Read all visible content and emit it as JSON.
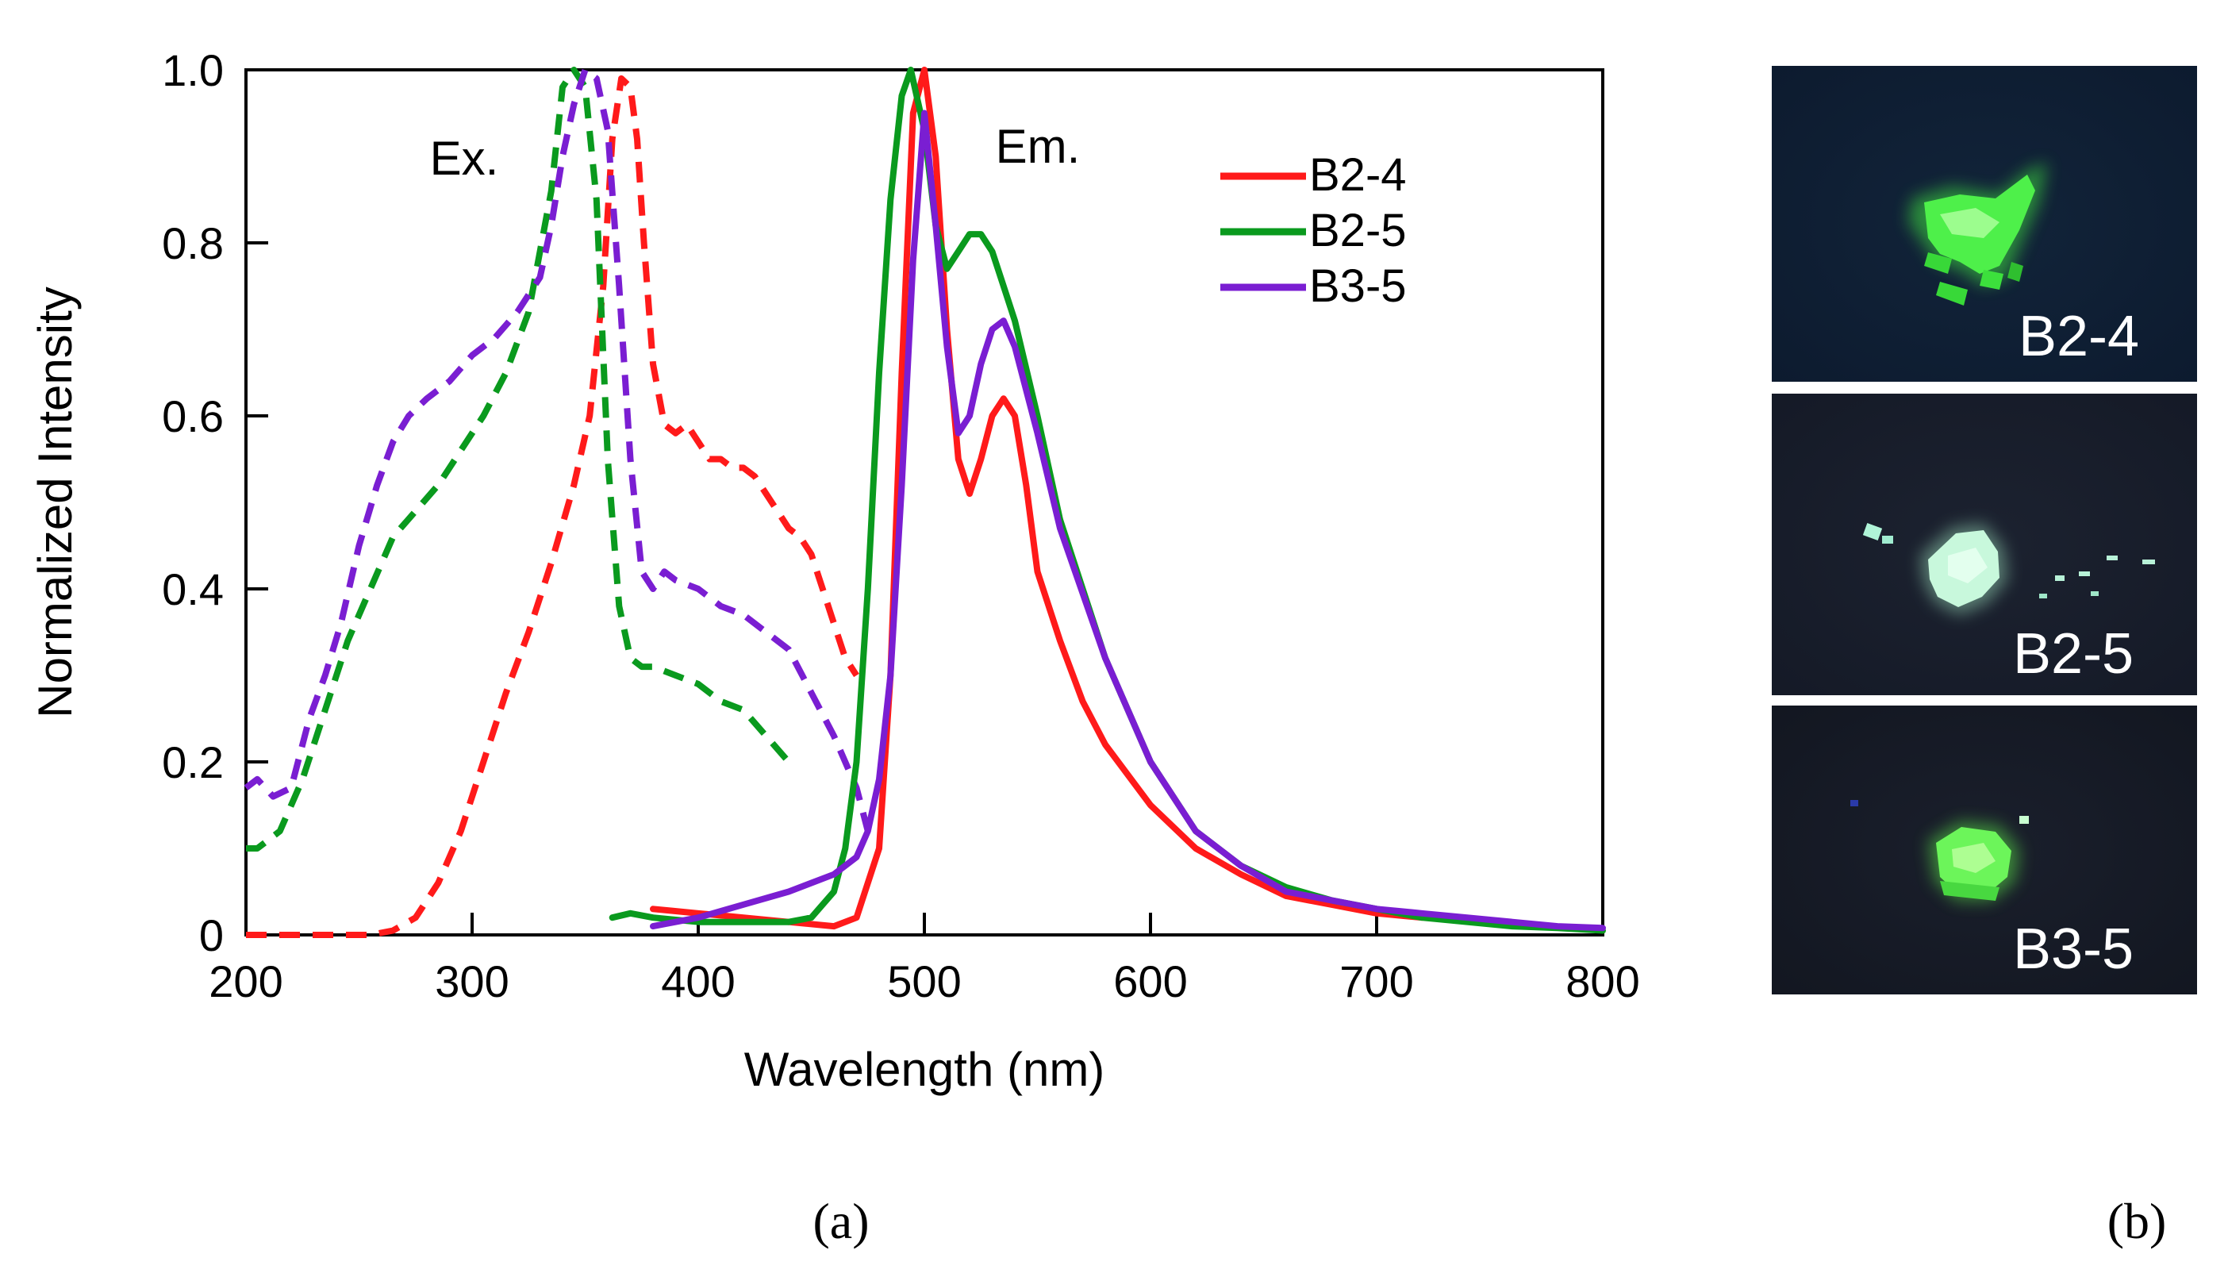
{
  "chart_data": {
    "type": "line",
    "title": "",
    "xlabel": "Wavelength (nm)",
    "ylabel": "Normalized Intensity",
    "xlim": [
      200,
      800
    ],
    "ylim": [
      0,
      1.0
    ],
    "x_ticks": [
      200,
      300,
      400,
      500,
      600,
      700,
      800
    ],
    "x_tick_labels": [
      "200",
      "300",
      "400",
      "500",
      "600",
      "700",
      "800"
    ],
    "y_ticks": [
      0,
      0.2,
      0.4,
      0.6,
      0.8,
      1.0
    ],
    "y_tick_labels": [
      "0",
      "0.2",
      "0.4",
      "0.6",
      "0.8",
      "1.0"
    ],
    "grid": false,
    "legend_position": "top-right",
    "annotations": {
      "excitation": "Ex.",
      "emission": "Em."
    },
    "series": [
      {
        "name": "B2-4",
        "color": "#ff1a1a",
        "excitation": {
          "x": [
            200,
            230,
            255,
            265,
            275,
            285,
            295,
            305,
            315,
            325,
            335,
            345,
            352,
            358,
            362,
            366,
            370,
            373,
            376,
            380,
            385,
            390,
            395,
            400,
            405,
            410,
            415,
            420,
            425,
            430,
            435,
            440,
            445,
            450,
            455,
            460,
            465,
            470
          ],
          "y": [
            0.0,
            0.0,
            0.0,
            0.005,
            0.02,
            0.06,
            0.12,
            0.2,
            0.28,
            0.35,
            0.43,
            0.52,
            0.6,
            0.75,
            0.92,
            0.99,
            0.98,
            0.92,
            0.8,
            0.66,
            0.59,
            0.58,
            0.59,
            0.57,
            0.55,
            0.55,
            0.54,
            0.54,
            0.53,
            0.51,
            0.49,
            0.47,
            0.46,
            0.44,
            0.4,
            0.36,
            0.32,
            0.3
          ]
        },
        "emission": {
          "x": [
            380,
            400,
            420,
            440,
            460,
            470,
            480,
            485,
            490,
            495,
            500,
            505,
            510,
            515,
            520,
            525,
            530,
            535,
            540,
            545,
            550,
            560,
            570,
            580,
            600,
            620,
            640,
            660,
            680,
            700,
            720
          ],
          "y": [
            0.03,
            0.025,
            0.02,
            0.015,
            0.01,
            0.02,
            0.1,
            0.3,
            0.65,
            0.95,
            1.0,
            0.9,
            0.7,
            0.55,
            0.51,
            0.55,
            0.6,
            0.62,
            0.6,
            0.52,
            0.42,
            0.34,
            0.27,
            0.22,
            0.15,
            0.1,
            0.07,
            0.045,
            0.035,
            0.025,
            0.02
          ]
        }
      },
      {
        "name": "B2-5",
        "color": "#0a9a1e",
        "excitation": {
          "x": [
            200,
            205,
            215,
            225,
            235,
            245,
            255,
            265,
            275,
            285,
            295,
            305,
            315,
            325,
            335,
            340,
            345,
            350,
            355,
            360,
            365,
            370,
            375,
            380,
            390,
            400,
            410,
            420,
            430,
            440
          ],
          "y": [
            0.1,
            0.1,
            0.12,
            0.18,
            0.26,
            0.34,
            0.4,
            0.46,
            0.49,
            0.52,
            0.56,
            0.6,
            0.65,
            0.72,
            0.86,
            0.98,
            1.0,
            0.98,
            0.85,
            0.55,
            0.38,
            0.32,
            0.31,
            0.31,
            0.3,
            0.29,
            0.27,
            0.26,
            0.23,
            0.2
          ]
        },
        "emission": {
          "x": [
            362,
            370,
            380,
            400,
            420,
            440,
            450,
            460,
            465,
            470,
            475,
            480,
            485,
            490,
            494,
            500,
            505,
            510,
            515,
            520,
            525,
            530,
            535,
            540,
            550,
            560,
            580,
            600,
            620,
            640,
            660,
            680,
            700,
            720,
            740,
            760,
            780,
            800
          ],
          "y": [
            0.02,
            0.025,
            0.02,
            0.015,
            0.015,
            0.015,
            0.02,
            0.05,
            0.1,
            0.2,
            0.4,
            0.65,
            0.85,
            0.97,
            1.0,
            0.93,
            0.82,
            0.77,
            0.79,
            0.81,
            0.81,
            0.79,
            0.75,
            0.71,
            0.6,
            0.48,
            0.32,
            0.2,
            0.12,
            0.08,
            0.055,
            0.04,
            0.03,
            0.02,
            0.015,
            0.01,
            0.008,
            0.005
          ]
        }
      },
      {
        "name": "B3-5",
        "color": "#7a1ed2",
        "excitation": {
          "x": [
            200,
            205,
            212,
            220,
            228,
            235,
            242,
            250,
            258,
            265,
            272,
            280,
            290,
            300,
            310,
            320,
            330,
            335,
            340,
            345,
            350,
            355,
            360,
            365,
            370,
            375,
            380,
            385,
            390,
            400,
            410,
            420,
            430,
            440,
            450,
            460,
            470,
            475
          ],
          "y": [
            0.17,
            0.18,
            0.16,
            0.17,
            0.25,
            0.3,
            0.36,
            0.45,
            0.52,
            0.57,
            0.6,
            0.62,
            0.64,
            0.67,
            0.69,
            0.72,
            0.76,
            0.82,
            0.9,
            0.96,
            1.0,
            0.99,
            0.93,
            0.75,
            0.55,
            0.42,
            0.4,
            0.42,
            0.41,
            0.4,
            0.38,
            0.37,
            0.35,
            0.33,
            0.28,
            0.23,
            0.17,
            0.12
          ]
        },
        "emission": {
          "x": [
            380,
            400,
            420,
            440,
            460,
            470,
            475,
            480,
            485,
            490,
            495,
            500,
            505,
            510,
            515,
            520,
            525,
            530,
            535,
            540,
            550,
            560,
            580,
            600,
            620,
            640,
            660,
            680,
            700,
            720,
            740,
            760,
            780,
            800
          ],
          "y": [
            0.01,
            0.02,
            0.035,
            0.05,
            0.07,
            0.09,
            0.12,
            0.18,
            0.3,
            0.52,
            0.78,
            0.95,
            0.82,
            0.68,
            0.58,
            0.6,
            0.66,
            0.7,
            0.71,
            0.68,
            0.58,
            0.47,
            0.32,
            0.2,
            0.12,
            0.08,
            0.05,
            0.04,
            0.03,
            0.025,
            0.02,
            0.015,
            0.01,
            0.008
          ]
        }
      }
    ]
  },
  "panels": {
    "a": "(a)",
    "b": "(b)"
  },
  "photos": [
    {
      "label": "B2-4",
      "glow_color": "#3fe23f"
    },
    {
      "label": "B2-5",
      "glow_color": "#a8f0c8"
    },
    {
      "label": "B3-5",
      "glow_color": "#5ef04a"
    }
  ]
}
